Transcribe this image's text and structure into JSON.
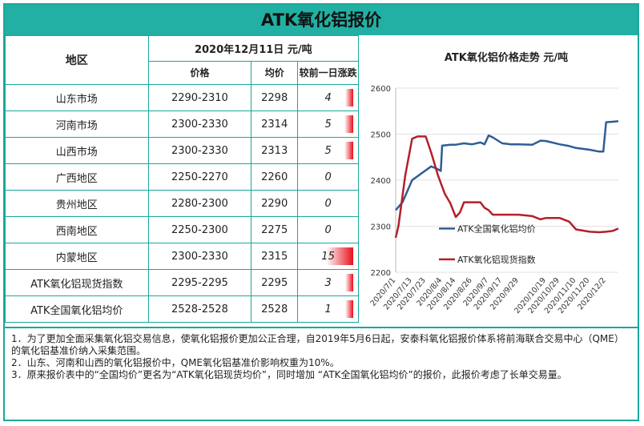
{
  "title": "ATK氧化铝报价",
  "table": {
    "header_region": "地区",
    "header_date": "2020年12月11日  元/吨",
    "header_price": "价格",
    "header_avg": "均价",
    "header_change": "较前一日涨跌",
    "rows": [
      {
        "region": "山东市场",
        "price": "2290-2310",
        "avg": "2298",
        "change": "4"
      },
      {
        "region": "河南市场",
        "price": "2300-2330",
        "avg": "2314",
        "change": "5"
      },
      {
        "region": "山西市场",
        "price": "2300-2330",
        "avg": "2313",
        "change": "5"
      },
      {
        "region": "广西地区",
        "price": "2250-2270",
        "avg": "2260",
        "change": "0"
      },
      {
        "region": "贵州地区",
        "price": "2280-2300",
        "avg": "2290",
        "change": "0"
      },
      {
        "region": "西南地区",
        "price": "2250-2300",
        "avg": "2275",
        "change": "0"
      },
      {
        "region": "内蒙地区",
        "price": "2300-2330",
        "avg": "2315",
        "change": "15"
      },
      {
        "region": "ATK氧化铝现货指数",
        "price": "2295-2295",
        "avg": "2295",
        "change": "3"
      },
      {
        "region": "ATK全国氧化铝均价",
        "price": "2528-2528",
        "avg": "2528",
        "change": "1"
      }
    ]
  },
  "chart_data": {
    "type": "line",
    "title": "ATK氧化铝价格走势  元/吨",
    "x_ticks": [
      "2020/7/1",
      "2020/7/13",
      "2020/7/23",
      "2020/8/4",
      "2020/8/14",
      "2020/8/26",
      "2020/9/7",
      "2020/9/17",
      "2020/9/29",
      "2020/10/19",
      "2020/10/29",
      "2020/11/10",
      "2020/11/20",
      "2020/12/2"
    ],
    "ylim": [
      2200,
      2600
    ],
    "y_ticks": [
      2200,
      2300,
      2400,
      2500,
      2600
    ],
    "legend_position": "inside-right",
    "series": [
      {
        "name": "ATK全国氧化铝均价",
        "color": "#2f5d96",
        "x": [
          "2020/7/1",
          "2020/7/6",
          "2020/7/13",
          "2020/7/20",
          "2020/7/27",
          "2020/7/31",
          "2020/8/3",
          "2020/8/4",
          "2020/8/10",
          "2020/8/14",
          "2020/8/20",
          "2020/8/26",
          "2020/9/1",
          "2020/9/4",
          "2020/9/7",
          "2020/9/10",
          "2020/9/17",
          "2020/9/23",
          "2020/9/29",
          "2020/10/9",
          "2020/10/15",
          "2020/10/19",
          "2020/10/29",
          "2020/11/5",
          "2020/11/10",
          "2020/11/20",
          "2020/11/27",
          "2020/11/30",
          "2020/12/2",
          "2020/12/7",
          "2020/12/11"
        ],
        "values": [
          2335,
          2352,
          2400,
          2415,
          2430,
          2425,
          2420,
          2475,
          2477,
          2477,
          2480,
          2478,
          2482,
          2478,
          2497,
          2493,
          2480,
          2478,
          2478,
          2477,
          2486,
          2485,
          2478,
          2474,
          2470,
          2466,
          2462,
          2462,
          2526,
          2527,
          2528
        ]
      },
      {
        "name": "ATK氧化铝现货指数",
        "color": "#b3202a",
        "x": [
          "2020/7/1",
          "2020/7/3",
          "2020/7/8",
          "2020/7/13",
          "2020/7/17",
          "2020/7/23",
          "2020/7/27",
          "2020/8/1",
          "2020/8/6",
          "2020/8/10",
          "2020/8/14",
          "2020/8/17",
          "2020/8/20",
          "2020/8/26",
          "2020/9/1",
          "2020/9/4",
          "2020/9/7",
          "2020/9/10",
          "2020/9/17",
          "2020/9/29",
          "2020/10/9",
          "2020/10/15",
          "2020/10/19",
          "2020/10/29",
          "2020/11/5",
          "2020/11/10",
          "2020/11/20",
          "2020/11/27",
          "2020/12/2",
          "2020/12/7",
          "2020/12/11"
        ],
        "values": [
          2275,
          2300,
          2410,
          2490,
          2495,
          2495,
          2460,
          2410,
          2370,
          2350,
          2320,
          2330,
          2352,
          2352,
          2352,
          2340,
          2335,
          2325,
          2325,
          2325,
          2322,
          2315,
          2318,
          2318,
          2310,
          2293,
          2288,
          2287,
          2288,
          2290,
          2295
        ]
      }
    ]
  },
  "notes": [
    "1．为了更加全面采集氧化铝交易信息，使氧化铝报价更加公正合理，自2019年5月6日起，安泰科氧化铝报价体系将前海联合交易中心（QME）的氧化铝基准价纳入采集范围。",
    "2．山东、河南和山西的氧化铝报价中，QME氧化铝基准价影响权重为10%。",
    "3．原来报价表中的“全国均价”更名为“ATK氧化铝现货均价”，同时增加 “ATK全国氧化铝均价”的报价，此报价考虑了长单交易量。"
  ]
}
